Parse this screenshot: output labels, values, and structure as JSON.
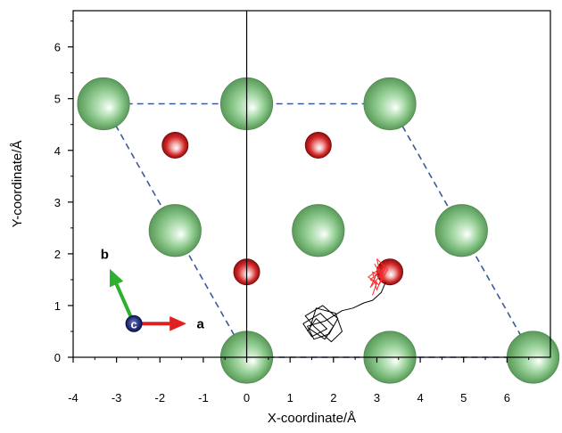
{
  "chart_data": {
    "type": "scatter",
    "title": "",
    "xlabel": "X-coordinate/Å",
    "ylabel": "Y-coordinate/Å",
    "xlim": [
      -4,
      7
    ],
    "ylim": [
      0,
      6.7
    ],
    "xticks": [
      -4,
      -3,
      -2,
      -1,
      0,
      1,
      2,
      3,
      4,
      5,
      6
    ],
    "yticks": [
      0,
      1,
      2,
      3,
      4,
      5,
      6
    ],
    "grid": false,
    "legend": "none",
    "vertical_reference_line_x": 0,
    "unit_cell": {
      "style": "dashed",
      "color": "#3a5a9a",
      "vertices": [
        [
          0,
          0
        ],
        [
          6.6,
          0
        ],
        [
          3.3,
          4.9
        ],
        [
          -3.3,
          4.9
        ]
      ]
    },
    "series": [
      {
        "kind": "large-green-atoms",
        "color": "#7cc07c",
        "points": [
          {
            "x": -3.3,
            "y": 4.9
          },
          {
            "x": 0,
            "y": 4.9
          },
          {
            "x": 3.3,
            "y": 4.9
          },
          {
            "x": -1.65,
            "y": 2.45
          },
          {
            "x": 1.65,
            "y": 2.45
          },
          {
            "x": 4.95,
            "y": 2.45
          },
          {
            "x": 0,
            "y": 0
          },
          {
            "x": 3.3,
            "y": 0
          },
          {
            "x": 6.6,
            "y": 0
          }
        ]
      },
      {
        "kind": "small-red-atoms",
        "color": "#d42a2a",
        "points": [
          {
            "x": -1.65,
            "y": 4.1
          },
          {
            "x": 1.65,
            "y": 4.1
          },
          {
            "x": 0,
            "y": 1.65
          },
          {
            "x": 3.3,
            "y": 1.65
          }
        ]
      }
    ],
    "trajectories": [
      {
        "color": "#000000",
        "points": [
          [
            1.4,
            0.5
          ],
          [
            1.6,
            0.75
          ],
          [
            1.85,
            0.55
          ],
          [
            1.5,
            0.4
          ],
          [
            1.3,
            0.65
          ],
          [
            1.7,
            0.85
          ],
          [
            2.0,
            0.6
          ],
          [
            1.8,
            0.35
          ],
          [
            1.45,
            0.55
          ],
          [
            1.6,
            0.95
          ],
          [
            2.05,
            0.85
          ],
          [
            2.2,
            0.5
          ],
          [
            1.95,
            0.3
          ],
          [
            1.55,
            0.6
          ],
          [
            1.35,
            0.8
          ],
          [
            1.75,
            1.0
          ],
          [
            2.1,
            0.75
          ],
          [
            1.9,
            0.45
          ],
          [
            1.55,
            0.35
          ],
          [
            1.4,
            0.6
          ],
          [
            1.8,
            0.7
          ],
          [
            2.2,
            0.9
          ],
          [
            2.45,
            0.95
          ],
          [
            2.7,
            1.05
          ],
          [
            2.9,
            1.1
          ],
          [
            3.1,
            1.25
          ],
          [
            3.2,
            1.45
          ]
        ]
      },
      {
        "color": "#ff2a2a",
        "points": [
          [
            2.9,
            1.2
          ],
          [
            3.0,
            1.45
          ],
          [
            2.8,
            1.55
          ],
          [
            3.05,
            1.7
          ],
          [
            2.85,
            1.35
          ],
          [
            3.1,
            1.6
          ],
          [
            2.95,
            1.8
          ],
          [
            3.15,
            1.5
          ],
          [
            2.9,
            1.65
          ],
          [
            3.0,
            1.3
          ],
          [
            3.2,
            1.75
          ],
          [
            2.85,
            1.5
          ],
          [
            3.05,
            1.4
          ],
          [
            3.25,
            1.7
          ],
          [
            3.0,
            1.9
          ],
          [
            3.1,
            1.55
          ]
        ]
      }
    ],
    "lattice_vectors": [
      {
        "label": "a",
        "color": "#e02020",
        "dx": 1.2,
        "dy": 0
      },
      {
        "label": "b",
        "color": "#2eb02e",
        "dx": -0.55,
        "dy": 1.05
      },
      {
        "label": "c",
        "color": "#1a237e"
      }
    ]
  }
}
